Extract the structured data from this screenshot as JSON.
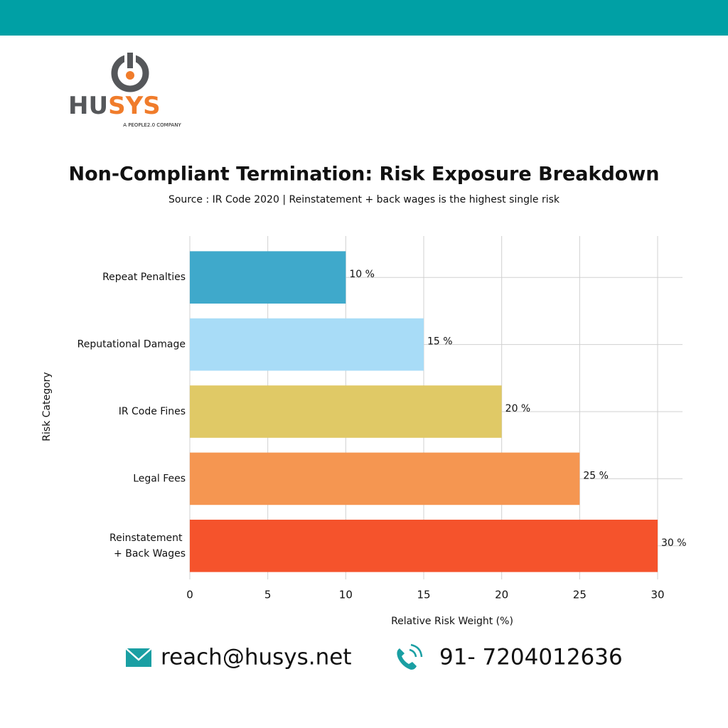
{
  "brand": {
    "left": "HU",
    "right": "SYS",
    "tagline": "A PEOPLE2.0 COMPANY"
  },
  "chart_data": {
    "type": "bar",
    "orientation": "horizontal",
    "title": "Non-Compliant Termination: Risk Exposure Breakdown",
    "subtitle": "Source : IR Code 2020 | Reinstatement + back wages is the highest single risk",
    "x_label": "Relative Risk Weight (%)",
    "y_label": "Risk Category",
    "categories": [
      "Repeat Penalties",
      "Reputational Damage",
      "IR Code Fines",
      "Legal Fees",
      "Reinstatement + Back Wages"
    ],
    "values": [
      10,
      15,
      20,
      25,
      30
    ],
    "value_labels": [
      "10 %",
      "15 %",
      "20 %",
      "25 %",
      "30 %"
    ],
    "colors": [
      "#3fa9cb",
      "#a8dcf7",
      "#e0c966",
      "#f59651",
      "#f5532c"
    ],
    "xlim": [
      0,
      30
    ],
    "xticks": [
      0,
      5,
      10,
      15,
      20,
      25,
      30
    ],
    "grid": true
  },
  "footer": {
    "email": "reach@husys.net",
    "phone": "91- 7204012636"
  }
}
